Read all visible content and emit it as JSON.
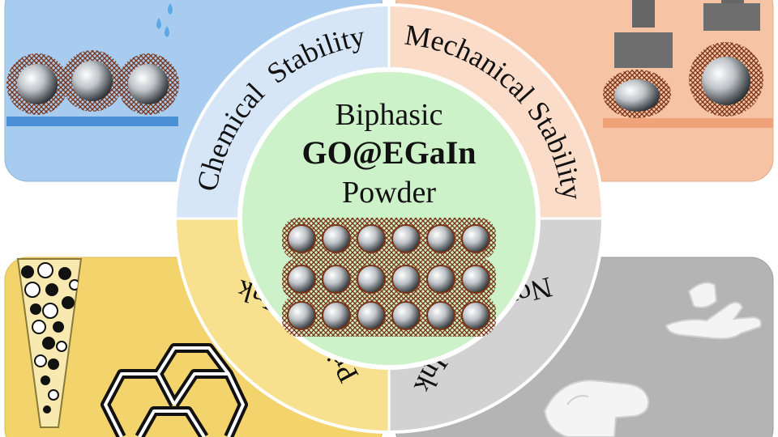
{
  "center": {
    "line1": "Biphasic",
    "line2": "GO@EGaIn",
    "line3": "Powder"
  },
  "quadrants": {
    "top_left": {
      "label": "Chemical  Stability"
    },
    "top_right": {
      "label": "Mechanical Stability"
    },
    "bottom_left": {
      "label": "Printable Ink"
    },
    "bottom_right": {
      "label": "Non-smear Ink"
    }
  },
  "colors": {
    "chemical": "#d6e6f7",
    "chemical_panel": "#a7ccef",
    "mechanical": "#fbdcc8",
    "mechanical_panel": "#f6c3a4",
    "printable": "#f7e08e",
    "printable_panel": "#f3d36b",
    "nonsmear": "#d2d2d2",
    "nonsmear_panel": "#b4b4b4",
    "center": "#cdf2c9",
    "particle_shell": "#7a3418"
  },
  "icons": {
    "water": "droplet-icon",
    "press": "press-icon",
    "hand": "glove-hand-icon",
    "tube": "ink-tube-icon",
    "pattern": "hexagon-pattern-icon"
  }
}
